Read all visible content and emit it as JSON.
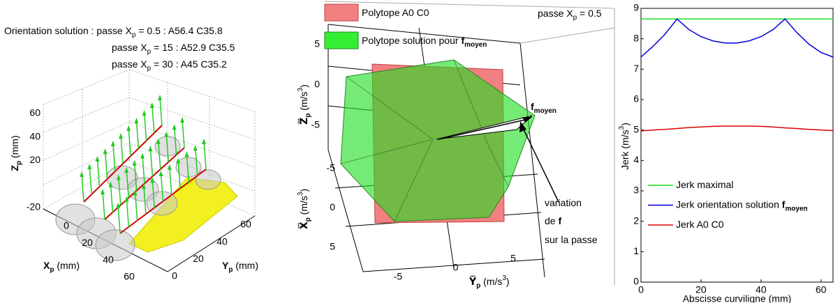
{
  "chart_data": [
    {
      "type": "3d",
      "title_lines": [
        [
          "Orientation solution : passe X",
          "p",
          " = 0.5 : A56.4 C35.8"
        ],
        [
          "passe X",
          "p",
          " = 15 : A52.9 C35.5"
        ],
        [
          "passe X",
          "p",
          " = 30 : A45 C35.2"
        ]
      ],
      "zlabel": [
        "Z",
        "p",
        " (mm)"
      ],
      "xlabel": [
        "X",
        "p",
        " (mm)"
      ],
      "ylabel": [
        "Y",
        "p",
        " (mm)"
      ],
      "zticks": [
        -20,
        20,
        40,
        60
      ],
      "xticks": [
        0,
        20,
        40,
        60
      ],
      "yticks": [
        0,
        20,
        40,
        60
      ]
    },
    {
      "type": "3d",
      "legend": [
        {
          "name": [
            "Polytope A0 C0"
          ],
          "color": "#f28080"
        },
        {
          "name": [
            "Polytope solution pour ",
            "f",
            "moyen"
          ],
          "color": "#33ee33"
        }
      ],
      "subtitle": [
        "passe X",
        "p",
        " = 0.5"
      ],
      "zlabel": [
        "Z⃛",
        "p",
        " (m/s",
        "3",
        ")"
      ],
      "xlabel": [
        "X⃛",
        "p",
        " (m/s",
        "3",
        ")"
      ],
      "ylabel": [
        "Y⃛",
        "p",
        " (m/s",
        "3",
        ")"
      ],
      "zticks": [
        -5,
        0,
        5
      ],
      "xticks": [
        -5,
        0,
        5
      ],
      "yticks": [
        -5,
        0,
        5
      ],
      "annotations": [
        [
          "f",
          "moyen"
        ],
        [
          "variation"
        ],
        [
          "de ",
          "f"
        ],
        [
          "sur la passe"
        ]
      ]
    },
    {
      "type": "line",
      "xlabel": "Abscisse curviligne (mm)",
      "ylabel": [
        "Jerk (m/s",
        "3",
        ")"
      ],
      "x": [
        0,
        4,
        8,
        12,
        16,
        20,
        24,
        28,
        32,
        36,
        40,
        44,
        48,
        52,
        56,
        60,
        64
      ],
      "xlim": [
        0,
        64
      ],
      "xticks": [
        0,
        20,
        40,
        60
      ],
      "ylim": [
        0,
        9
      ],
      "yticks": [
        0,
        1,
        2,
        3,
        4,
        5,
        6,
        7,
        8,
        9
      ],
      "legend": "lower left",
      "series": [
        {
          "name": [
            "Jerk maximal"
          ],
          "color": "#22dd22",
          "values": [
            8.65,
            8.65,
            8.65,
            8.65,
            8.65,
            8.65,
            8.65,
            8.65,
            8.65,
            8.65,
            8.65,
            8.65,
            8.65,
            8.65,
            8.65,
            8.65,
            8.65
          ]
        },
        {
          "name": [
            "Jerk orientation solution ",
            "f",
            "moyen"
          ],
          "color": "#0000dd",
          "values": [
            7.4,
            7.75,
            8.15,
            8.65,
            8.3,
            8.07,
            7.93,
            7.86,
            7.86,
            7.93,
            8.07,
            8.3,
            8.65,
            8.2,
            7.82,
            7.55,
            7.4
          ]
        },
        {
          "name": [
            "Jerk A0 C0"
          ],
          "color": "#dd0000",
          "values": [
            4.97,
            5.0,
            5.02,
            5.05,
            5.08,
            5.1,
            5.12,
            5.13,
            5.13,
            5.13,
            5.12,
            5.1,
            5.07,
            5.05,
            5.02,
            5.0,
            4.98
          ]
        }
      ]
    }
  ]
}
